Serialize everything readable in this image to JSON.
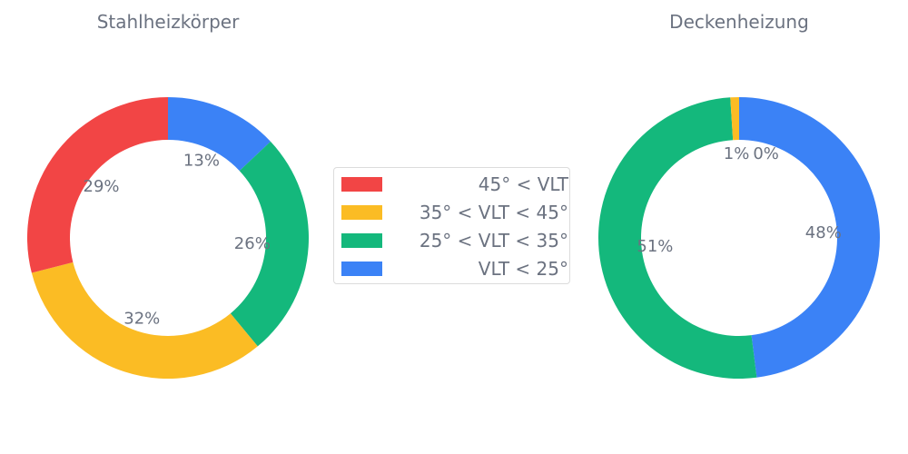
{
  "chart_data": [
    {
      "type": "pie",
      "donut": true,
      "title": "Stahlheizkörper",
      "slices": [
        {
          "category": "VLT < 25°",
          "value": 13,
          "label": "13%",
          "color": "#3b82f6"
        },
        {
          "category": "25° < VLT < 35°",
          "value": 26,
          "label": "26%",
          "color": "#14b87c"
        },
        {
          "category": "35° < VLT < 45°",
          "value": 32,
          "label": "32%",
          "color": "#fbbc24"
        },
        {
          "category": "45° < VLT",
          "value": 29,
          "label": "29%",
          "color": "#f24545"
        }
      ]
    },
    {
      "type": "pie",
      "donut": true,
      "title": "Deckenheizung",
      "slices": [
        {
          "category": "VLT < 25°",
          "value": 48,
          "label": "48%",
          "color": "#3b82f6"
        },
        {
          "category": "25° < VLT < 35°",
          "value": 51,
          "label": "51%",
          "color": "#14b87c"
        },
        {
          "category": "35° < VLT < 45°",
          "value": 1,
          "label": "1%",
          "color": "#fbbc24"
        },
        {
          "category": "45° < VLT",
          "value": 0,
          "label": "0%",
          "color": "#f24545"
        }
      ]
    }
  ],
  "legend": {
    "placement": "center",
    "items": [
      {
        "label": "45° < VLT",
        "color": "#f24545"
      },
      {
        "label": "35° < VLT < 45°",
        "color": "#fbbc24"
      },
      {
        "label": "25° < VLT < 35°",
        "color": "#14b87c"
      },
      {
        "label": "VLT < 25°",
        "color": "#3b82f6"
      }
    ]
  }
}
